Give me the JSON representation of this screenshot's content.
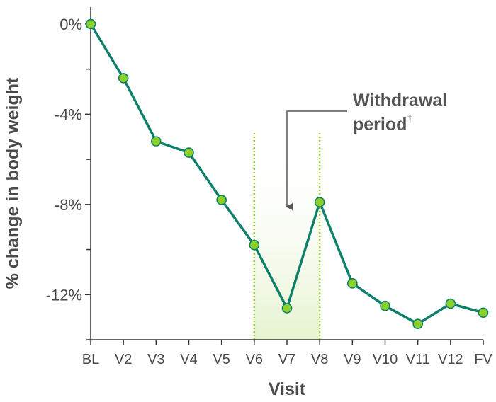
{
  "chart_data": {
    "type": "line",
    "title": "",
    "xlabel": "Visit",
    "ylabel": "% change in body weight",
    "categories": [
      "BL",
      "V2",
      "V3",
      "V4",
      "V5",
      "V6",
      "V7",
      "V8",
      "V9",
      "V10",
      "V11",
      "V12",
      "FV"
    ],
    "series": [
      {
        "values": [
          0,
          -2.4,
          -5.2,
          -5.7,
          -7.8,
          -9.8,
          -12.6,
          -7.9,
          -11.5,
          -12.5,
          -13.3,
          -12.4,
          -12.8
        ]
      }
    ],
    "ylim": [
      -14,
      0.5
    ],
    "yticks": [
      0,
      -4,
      -8,
      -12
    ],
    "ytick_labels": [
      "0%",
      "-4%",
      "-8%",
      "-12%"
    ],
    "y_minor_ticks": [
      -2,
      -6,
      -10,
      -14
    ],
    "grid": false,
    "legend": "none",
    "highlight_band": {
      "from": "V6",
      "to": "V8"
    },
    "annotation": {
      "line1": "Withdrawal",
      "line2": "period",
      "superscript": "†",
      "points_to": "V7"
    },
    "colors": {
      "line": "#0e7f6a",
      "marker_fill": "#8cd12a",
      "marker_edge": "#0e7f6a",
      "band_fill": "#eef7de",
      "band_edge": "#9cd232",
      "axis": "#333333",
      "text": "#4a4a4a"
    }
  }
}
